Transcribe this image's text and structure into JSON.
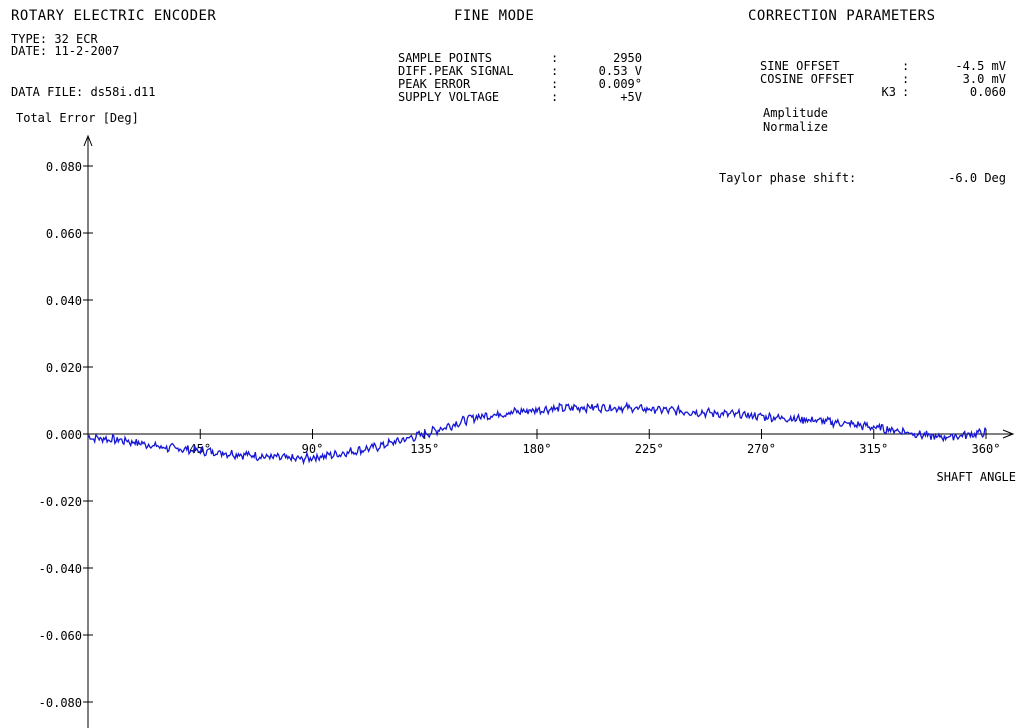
{
  "header": {
    "title": "ROTARY ELECTRIC ENCODER",
    "mode": "FINE MODE",
    "correction_title": "CORRECTION PARAMETERS",
    "type_line": "TYPE: 32 ECR",
    "date_line": "DATE: 11-2-2007",
    "data_file_line": "DATA FILE: ds58i.d11"
  },
  "measurements": [
    {
      "label": "SAMPLE POINTS",
      "sep": ":",
      "value": "2950"
    },
    {
      "label": "DIFF.PEAK SIGNAL",
      "sep": ":",
      "value": "0.53 V"
    },
    {
      "label": "PEAK ERROR",
      "sep": ":",
      "value": "0.009°"
    },
    {
      "label": "SUPPLY VOLTAGE",
      "sep": ":",
      "value": "+5V"
    }
  ],
  "correction": [
    {
      "label": "SINE OFFSET",
      "sep": ":",
      "value": "-4.5 mV"
    },
    {
      "label": "COSINE OFFSET",
      "sep": ":",
      "value": "3.0 mV"
    },
    {
      "label": "K3",
      "sep": ":",
      "value": "0.060"
    }
  ],
  "correction_notes": [
    "Amplitude",
    "Normalize"
  ],
  "taylor": {
    "label": "Taylor phase shift:",
    "value": "-6.0 Deg"
  },
  "colors": {
    "trace": "#1515d6",
    "axis": "#000000",
    "background": "#ffffff"
  },
  "chart_data": {
    "type": "line",
    "xlabel": "SHAFT ANGLE",
    "ylabel": "Total Error [Deg]",
    "xlim": [
      0,
      360
    ],
    "ylim": [
      -0.08,
      0.08
    ],
    "grid": false,
    "x_ticks": [
      {
        "value": 45,
        "label": "45°"
      },
      {
        "value": 90,
        "label": "90°"
      },
      {
        "value": 135,
        "label": "135°"
      },
      {
        "value": 180,
        "label": "180°"
      },
      {
        "value": 225,
        "label": "225°"
      },
      {
        "value": 270,
        "label": "270°"
      },
      {
        "value": 315,
        "label": "315°"
      },
      {
        "value": 360,
        "label": "360°"
      }
    ],
    "y_ticks": [
      {
        "value": 0.08,
        "label": "0.080"
      },
      {
        "value": 0.06,
        "label": "0.060"
      },
      {
        "value": 0.04,
        "label": "0.040"
      },
      {
        "value": 0.02,
        "label": "0.020"
      },
      {
        "value": 0.0,
        "label": "0.000"
      },
      {
        "value": -0.02,
        "label": "-0.020"
      },
      {
        "value": -0.04,
        "label": "-0.040"
      },
      {
        "value": -0.06,
        "label": "-0.060"
      },
      {
        "value": -0.08,
        "label": "-0.080"
      }
    ],
    "series": [
      {
        "x": [
          0,
          15,
          30,
          45,
          60,
          75,
          85,
          100,
          115,
          125,
          135,
          145,
          155,
          170,
          185,
          200,
          215,
          230,
          245,
          260,
          275,
          290,
          305,
          315,
          325,
          340,
          350,
          360
        ],
        "y": [
          -0.001,
          -0.002,
          -0.004,
          -0.005,
          -0.006,
          -0.007,
          -0.0075,
          -0.006,
          -0.004,
          -0.002,
          0.0,
          0.0025,
          0.005,
          0.0065,
          0.0075,
          0.008,
          0.0078,
          0.0072,
          0.0065,
          0.0058,
          0.005,
          0.0042,
          0.003,
          0.002,
          0.001,
          -0.001,
          -0.0005,
          0.0005
        ]
      }
    ]
  }
}
